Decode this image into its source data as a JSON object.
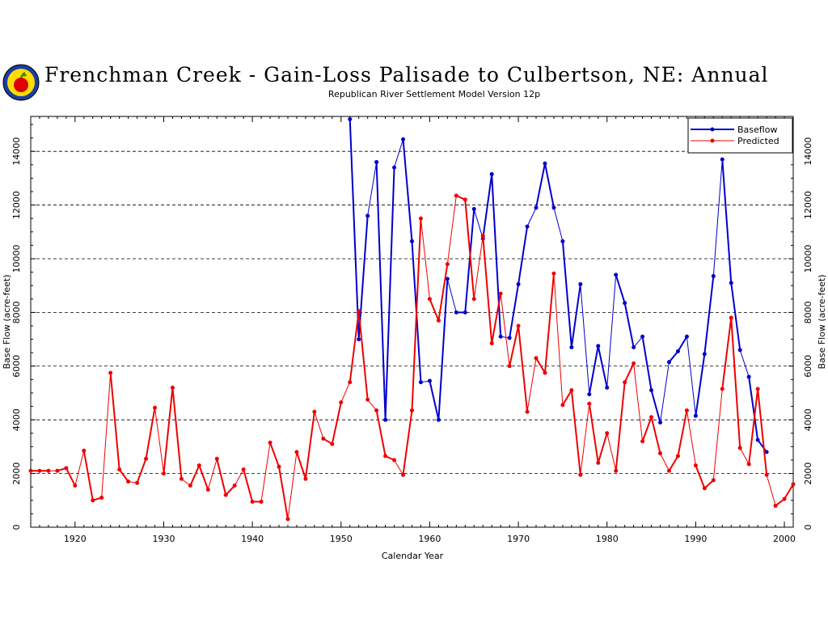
{
  "header": {
    "title": "Frenchman Creek - Gain-Loss Palisade to Culbertson, NE: Annual",
    "subtitle": "Republican River Settlement Model Version 12p"
  },
  "colors": {
    "baseflow": "#0000cc",
    "predicted": "#ee0000"
  },
  "chart_data": {
    "type": "line",
    "xlabel": "Calendar Year",
    "ylabel": "Base Flow (acre-feet)",
    "xlim": [
      1915,
      2001
    ],
    "ylim": [
      0,
      15300
    ],
    "xticks": [
      1920,
      1930,
      1940,
      1950,
      1960,
      1970,
      1980,
      1990,
      2000
    ],
    "yticks": [
      0,
      2000,
      4000,
      6000,
      8000,
      10000,
      12000,
      14000
    ],
    "grid": "horizontal dashed",
    "legend": "top-right",
    "series": [
      {
        "name": "Baseflow",
        "x": [
          1951,
          1952,
          1953,
          1954,
          1955,
          1956,
          1957,
          1958,
          1959,
          1960,
          1961,
          1962,
          1963,
          1964,
          1965,
          1966,
          1967,
          1968,
          1969,
          1970,
          1971,
          1972,
          1973,
          1974,
          1975,
          1976,
          1977,
          1978,
          1979,
          1980,
          1981,
          1982,
          1983,
          1984,
          1985,
          1986,
          1987,
          1988,
          1989,
          1990,
          1991,
          1992,
          1993,
          1994,
          1995,
          1996,
          1997,
          1998
        ],
        "values": [
          15200,
          7000,
          11600,
          13600,
          4000,
          13400,
          14450,
          10650,
          5400,
          5450,
          4000,
          9250,
          8000,
          8000,
          11850,
          10750,
          13150,
          7100,
          7050,
          9050,
          11200,
          11900,
          13550,
          11900,
          10650,
          6700,
          9050,
          4950,
          6750,
          5200,
          9400,
          8350,
          6700,
          7100,
          5100,
          3900,
          6150,
          6550,
          7100,
          4150,
          6450,
          9350,
          13700,
          9100,
          6600,
          5600,
          3250,
          2800
        ]
      },
      {
        "name": "Predicted",
        "x": [
          1915,
          1916,
          1917,
          1918,
          1919,
          1920,
          1921,
          1922,
          1923,
          1924,
          1925,
          1926,
          1927,
          1928,
          1929,
          1930,
          1931,
          1932,
          1933,
          1934,
          1935,
          1936,
          1937,
          1938,
          1939,
          1940,
          1941,
          1942,
          1943,
          1944,
          1945,
          1946,
          1947,
          1948,
          1949,
          1950,
          1951,
          1952,
          1953,
          1954,
          1955,
          1956,
          1957,
          1958,
          1959,
          1960,
          1961,
          1962,
          1963,
          1964,
          1965,
          1966,
          1967,
          1968,
          1969,
          1970,
          1971,
          1972,
          1973,
          1974,
          1975,
          1976,
          1977,
          1978,
          1979,
          1980,
          1981,
          1982,
          1983,
          1984,
          1985,
          1986,
          1987,
          1988,
          1989,
          1990,
          1991,
          1992,
          1993,
          1994,
          1995,
          1996,
          1997,
          1998,
          1999,
          2000,
          2001
        ],
        "values": [
          2100,
          2100,
          2100,
          2100,
          2200,
          1550,
          2850,
          1000,
          1100,
          5750,
          2150,
          1700,
          1650,
          2550,
          4450,
          2000,
          5200,
          1800,
          1550,
          2300,
          1400,
          2550,
          1200,
          1550,
          2150,
          950,
          950,
          3150,
          2250,
          300,
          2800,
          1800,
          4300,
          3300,
          3100,
          4650,
          5400,
          8050,
          4750,
          4350,
          2650,
          2500,
          1950,
          4350,
          11500,
          8500,
          7700,
          9800,
          12350,
          12200,
          8500,
          10850,
          6850,
          8700,
          6000,
          7500,
          4300,
          6300,
          5750,
          9450,
          4550,
          5100,
          1950,
          4600,
          2400,
          3500,
          2100,
          5400,
          6100,
          3200,
          4100,
          2750,
          2100,
          2650,
          4350,
          2300,
          1450,
          1750,
          5150,
          7800,
          2950,
          2350,
          5150,
          1950,
          800,
          1050,
          1600
        ]
      }
    ]
  }
}
